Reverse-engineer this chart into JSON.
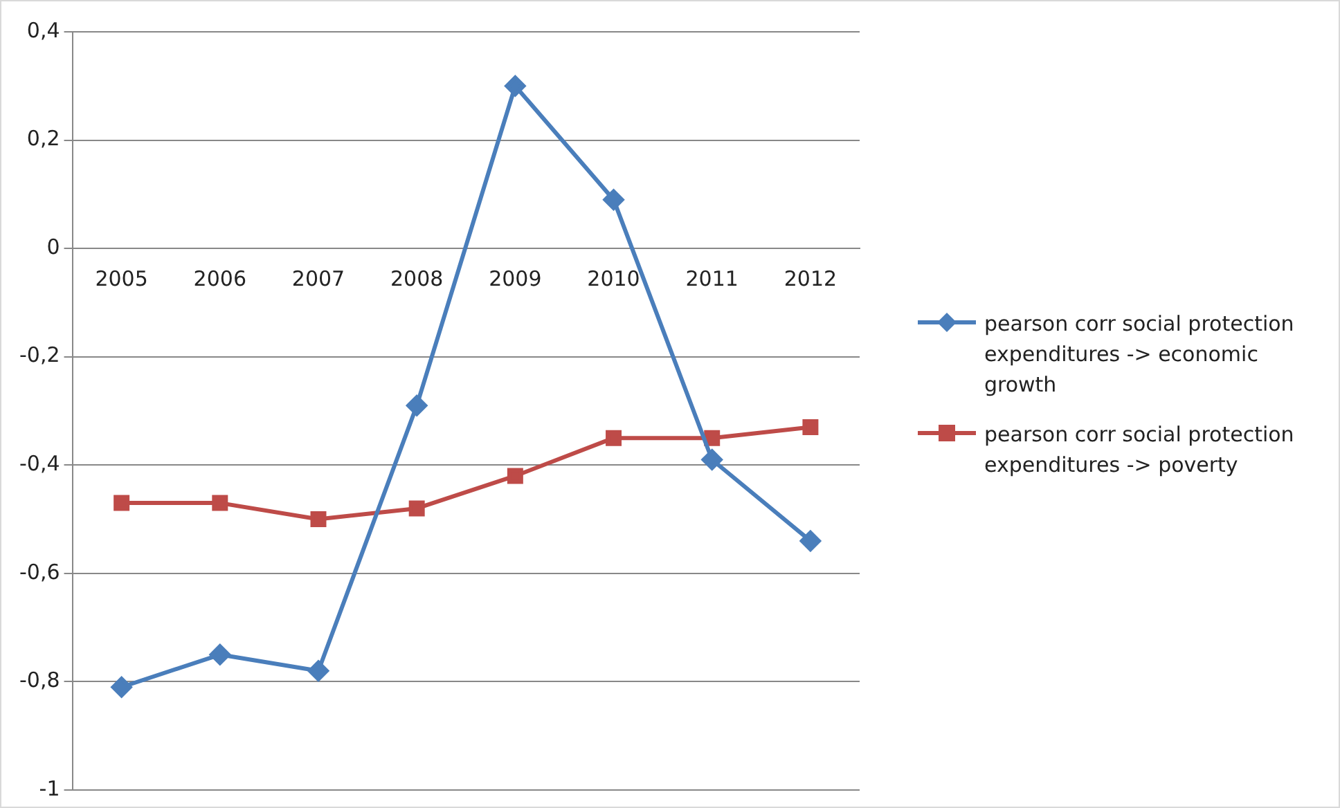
{
  "chart_data": {
    "type": "line",
    "categories": [
      "2005",
      "2006",
      "2007",
      "2008",
      "2009",
      "2010",
      "2011",
      "2012"
    ],
    "series": [
      {
        "name": "pearson corr social protection expenditures -> economic growth",
        "color": "#4a7ebb",
        "marker": "diamond",
        "values": [
          -0.81,
          -0.75,
          -0.78,
          -0.29,
          0.3,
          0.09,
          -0.39,
          -0.54
        ]
      },
      {
        "name": "pearson corr social protection expenditures -> poverty",
        "color": "#be4b48",
        "marker": "square",
        "values": [
          -0.47,
          -0.47,
          -0.5,
          -0.48,
          -0.42,
          -0.35,
          -0.35,
          -0.33
        ]
      }
    ],
    "ylim": [
      -1,
      0.4
    ],
    "yticks": [
      {
        "value": -1,
        "label": "-1"
      },
      {
        "value": -0.8,
        "label": "-0,8"
      },
      {
        "value": -0.6,
        "label": "-0,6"
      },
      {
        "value": -0.4,
        "label": "-0,4"
      },
      {
        "value": -0.2,
        "label": "-0,2"
      },
      {
        "value": 0,
        "label": "0"
      },
      {
        "value": 0.2,
        "label": "0,2"
      },
      {
        "value": 0.4,
        "label": "0,4"
      }
    ],
    "grid": "y",
    "legend": "right",
    "line_style": "solid"
  }
}
